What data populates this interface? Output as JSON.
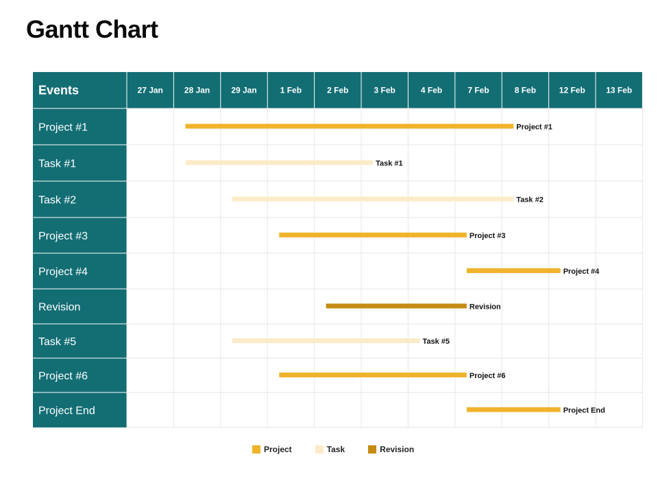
{
  "title": "Gantt Chart",
  "colors": {
    "header_bg": "#136e74",
    "header_text": "#ffffff",
    "grid_line": "#e6e6e6",
    "project": "#f0b32c",
    "task": "#fcebc8",
    "revision": "#c68b12"
  },
  "chart_data": {
    "type": "gantt",
    "header_label": "Events",
    "dates": [
      "27 Jan",
      "28 Jan",
      "29 Jan",
      "1 Feb",
      "2 Feb",
      "3 Feb",
      "4 Feb",
      "7 Feb",
      "8 Feb",
      "12 Feb",
      "13 Feb"
    ],
    "rows": [
      {
        "name": "Project #1",
        "category": "Project",
        "start": "28 Jan",
        "end": "8 Feb",
        "label": "Project #1"
      },
      {
        "name": "Task #1",
        "category": "Task",
        "start": "28 Jan",
        "end": "3 Feb",
        "label": "Task #1"
      },
      {
        "name": "Task #2",
        "category": "Task",
        "start": "29 Jan",
        "end": "8 Feb",
        "label": "Task #2"
      },
      {
        "name": "Project #3",
        "category": "Project",
        "start": "1 Feb",
        "end": "7 Feb",
        "label": "Project #3"
      },
      {
        "name": "Project #4",
        "category": "Project",
        "start": "7 Feb",
        "end": "12 Feb",
        "label": "Project #4"
      },
      {
        "name": "Revision",
        "category": "Revision",
        "start": "2 Feb",
        "end": "7 Feb",
        "label": "Revision"
      },
      {
        "name": "Task #5",
        "category": "Task",
        "start": "29 Jan",
        "end": "4 Feb",
        "label": "Task #5"
      },
      {
        "name": "Project #6",
        "category": "Project",
        "start": "1 Feb",
        "end": "7 Feb",
        "label": "Project #6"
      },
      {
        "name": "Project End",
        "category": "Project",
        "start": "7 Feb",
        "end": "12 Feb",
        "label": "Project End"
      }
    ],
    "legend": [
      "Project",
      "Task",
      "Revision"
    ],
    "legend_placement": "bottom-center",
    "grid": true
  }
}
